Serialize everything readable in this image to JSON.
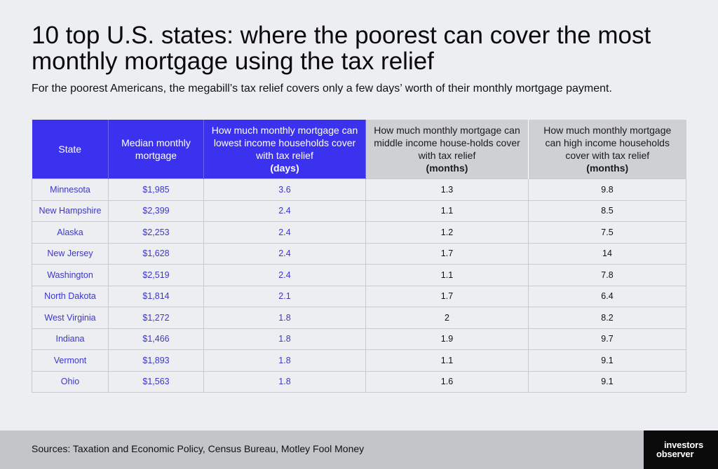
{
  "title": "10 top U.S. states: where the poorest can cover the most monthly mortgage using the tax relief",
  "subtitle": "For the poorest Americans, the megabill’s tax relief covers only a few days’ worth of their monthly mortgage payment.",
  "table": {
    "headers": {
      "state": "State",
      "median": "Median monthly mortgage",
      "lowest": "How much monthly mortgage can lowest income households cover with tax relief",
      "lowest_unit": "(days)",
      "middle": "How much monthly mortgage can middle income house-holds cover with tax relief",
      "middle_unit": "(months)",
      "high": "How much monthly mortgage can high income households cover with tax relief",
      "high_unit": "(months)"
    },
    "rows": [
      {
        "state": "Minnesota",
        "median": "$1,985",
        "lowest": "3.6",
        "middle": "1.3",
        "high": "9.8"
      },
      {
        "state": "New Hampshire",
        "median": "$2,399",
        "lowest": "2.4",
        "middle": "1.1",
        "high": "8.5"
      },
      {
        "state": "Alaska",
        "median": "$2,253",
        "lowest": "2.4",
        "middle": "1.2",
        "high": "7.5"
      },
      {
        "state": "New Jersey",
        "median": "$1,628",
        "lowest": "2.4",
        "middle": "1.7",
        "high": "14"
      },
      {
        "state": "Washington",
        "median": "$2,519",
        "lowest": "2.4",
        "middle": "1.1",
        "high": "7.8"
      },
      {
        "state": "North Dakota",
        "median": "$1,814",
        "lowest": "2.1",
        "middle": "1.7",
        "high": "6.4"
      },
      {
        "state": "West Virginia",
        "median": "$1,272",
        "lowest": "1.8",
        "middle": "2",
        "high": "8.2"
      },
      {
        "state": "Indiana",
        "median": "$1,466",
        "lowest": "1.8",
        "middle": "1.9",
        "high": "9.7"
      },
      {
        "state": "Vermont",
        "median": "$1,893",
        "lowest": "1.8",
        "middle": "1.1",
        "high": "9.1"
      },
      {
        "state": "Ohio",
        "median": "$1,563",
        "lowest": "1.8",
        "middle": "1.6",
        "high": "9.1"
      }
    ]
  },
  "footer": {
    "sources": "Sources: Taxation and Economic Policy, Census Bureau, Motley Fool Money",
    "logo_line1": "investors",
    "logo_line2": "observer"
  },
  "colors": {
    "accent_blue": "#3b32f0",
    "header_grey": "#cfd0d3",
    "background": "#edeef2",
    "footer": "#c4c5c8",
    "logo_bg": "#0b0b0b"
  }
}
